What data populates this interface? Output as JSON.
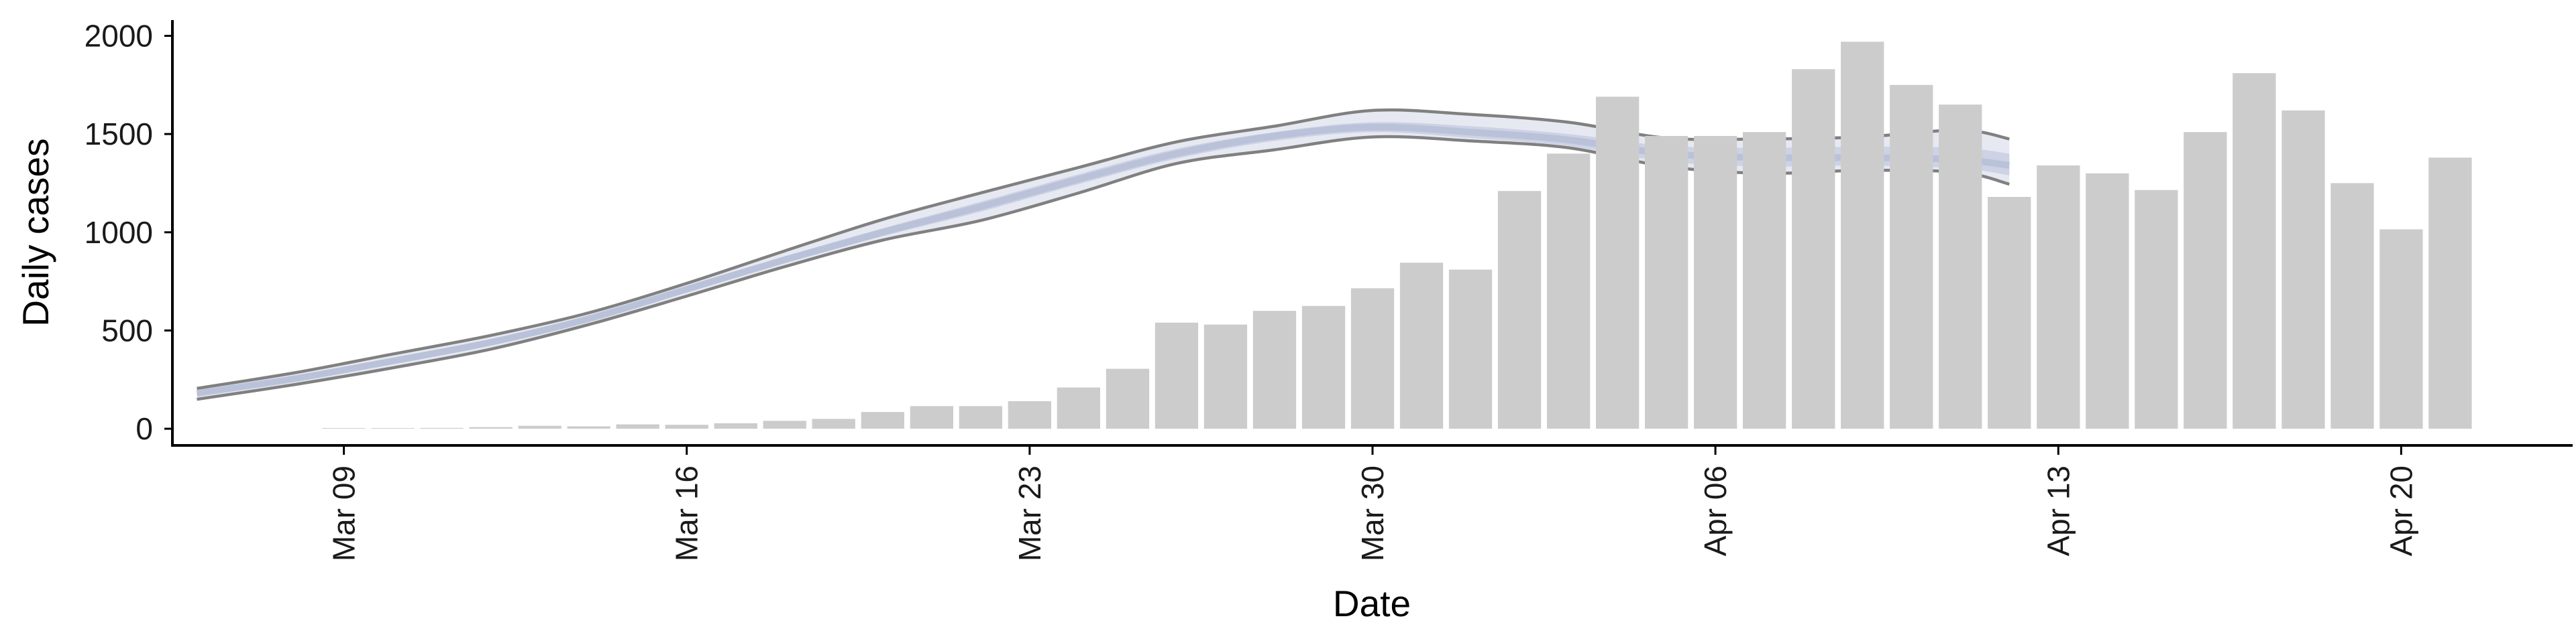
{
  "chart_data": {
    "type": "bar",
    "xlabel": "Date",
    "ylabel": "Daily cases",
    "ylim": [
      -85,
      2080
    ],
    "yticks": [
      0,
      500,
      1000,
      1500,
      2000
    ],
    "x_dates": [
      "Mar 06",
      "Mar 07",
      "Mar 08",
      "Mar 09",
      "Mar 10",
      "Mar 11",
      "Mar 12",
      "Mar 13",
      "Mar 14",
      "Mar 15",
      "Mar 16",
      "Mar 17",
      "Mar 18",
      "Mar 19",
      "Mar 20",
      "Mar 21",
      "Mar 22",
      "Mar 23",
      "Mar 24",
      "Mar 25",
      "Mar 26",
      "Mar 27",
      "Mar 28",
      "Mar 29",
      "Mar 30",
      "Mar 31",
      "Apr 01",
      "Apr 02",
      "Apr 03",
      "Apr 04",
      "Apr 05",
      "Apr 06",
      "Apr 07",
      "Apr 08",
      "Apr 09",
      "Apr 10",
      "Apr 11",
      "Apr 12",
      "Apr 13",
      "Apr 14",
      "Apr 15",
      "Apr 16",
      "Apr 17",
      "Apr 18",
      "Apr 19",
      "Apr 20",
      "Apr 21",
      "Apr 22",
      "Apr 23"
    ],
    "x_ticks": [
      {
        "date": "Mar 09",
        "label": "Mar 09"
      },
      {
        "date": "Mar 16",
        "label": "Mar 16"
      },
      {
        "date": "Mar 23",
        "label": "Mar 23"
      },
      {
        "date": "Mar 30",
        "label": "Mar 30"
      },
      {
        "date": "Apr 06",
        "label": "Apr 06"
      },
      {
        "date": "Apr 13",
        "label": "Apr 13"
      },
      {
        "date": "Apr 20",
        "label": "Apr 20"
      }
    ],
    "bars": {
      "dates": [
        "Mar 09",
        "Mar 10",
        "Mar 11",
        "Mar 12",
        "Mar 13",
        "Mar 14",
        "Mar 15",
        "Mar 16",
        "Mar 17",
        "Mar 18",
        "Mar 19",
        "Mar 20",
        "Mar 21",
        "Mar 22",
        "Mar 23",
        "Mar 24",
        "Mar 25",
        "Mar 26",
        "Mar 27",
        "Mar 28",
        "Mar 29",
        "Mar 30",
        "Mar 31",
        "Apr 01",
        "Apr 02",
        "Apr 03",
        "Apr 04",
        "Apr 05",
        "Apr 06",
        "Apr 07",
        "Apr 08",
        "Apr 09",
        "Apr 10",
        "Apr 11",
        "Apr 12",
        "Apr 13",
        "Apr 14",
        "Apr 15",
        "Apr 16",
        "Apr 17",
        "Apr 18",
        "Apr 19",
        "Apr 20",
        "Apr 21"
      ],
      "values": [
        2,
        0,
        4,
        8,
        15,
        12,
        22,
        20,
        28,
        40,
        50,
        85,
        115,
        115,
        140,
        210,
        305,
        540,
        530,
        600,
        625,
        715,
        845,
        810,
        1210,
        1400,
        1690,
        1490,
        1490,
        1510,
        1830,
        1970,
        1750,
        1650,
        1180,
        1340,
        1300,
        1215,
        1510,
        1810,
        1620,
        1250,
        1015,
        1380
      ],
      "color": "#cccccc"
    },
    "band": {
      "dates": [
        "Mar 06",
        "Mar 08",
        "Mar 10",
        "Mar 12",
        "Mar 14",
        "Mar 16",
        "Mar 18",
        "Mar 20",
        "Mar 22",
        "Mar 24",
        "Mar 26",
        "Mar 28",
        "Mar 30",
        "Apr 01",
        "Apr 03",
        "Apr 05",
        "Apr 07",
        "Apr 09",
        "Apr 11",
        "Apr 12"
      ],
      "median": [
        180,
        255,
        345,
        440,
        560,
        710,
        860,
        1000,
        1130,
        1270,
        1400,
        1490,
        1535,
        1510,
        1470,
        1400,
        1380,
        1380,
        1370,
        1340
      ],
      "outer_upper": [
        205,
        285,
        380,
        475,
        590,
        740,
        905,
        1065,
        1200,
        1330,
        1460,
        1540,
        1620,
        1600,
        1560,
        1480,
        1475,
        1485,
        1520,
        1475
      ],
      "outer_lower": [
        150,
        225,
        310,
        405,
        530,
        675,
        825,
        960,
        1060,
        1200,
        1350,
        1420,
        1485,
        1465,
        1430,
        1335,
        1300,
        1315,
        1305,
        1245
      ],
      "inner_upper": [
        190,
        268,
        360,
        455,
        573,
        722,
        877,
        1020,
        1155,
        1295,
        1425,
        1510,
        1560,
        1540,
        1500,
        1440,
        1430,
        1435,
        1430,
        1400
      ],
      "inner_lower": [
        170,
        242,
        330,
        425,
        547,
        698,
        843,
        980,
        1105,
        1245,
        1375,
        1465,
        1510,
        1480,
        1440,
        1360,
        1335,
        1340,
        1325,
        1290
      ],
      "line_color": "#808080",
      "band_color": "#b8c0d8"
    },
    "grid": false,
    "legend": "none"
  }
}
